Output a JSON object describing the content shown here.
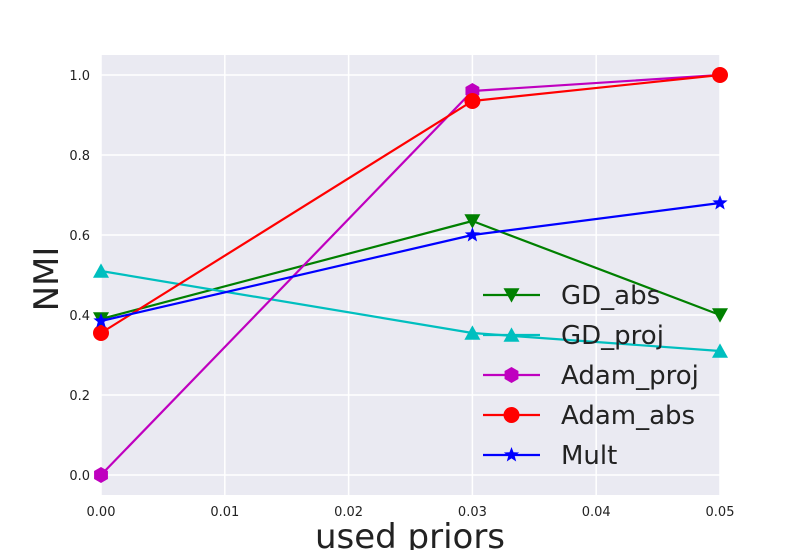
{
  "chart_data": {
    "type": "line",
    "title": "",
    "xlabel": "used priors",
    "ylabel": "NMI",
    "xlim": [
      0.0,
      0.05
    ],
    "ylim": [
      -0.05,
      1.05
    ],
    "xticks": [
      0.0,
      0.01,
      0.02,
      0.03,
      0.04,
      0.05
    ],
    "xtick_labels": [
      "0.00",
      "0.01",
      "0.02",
      "0.03",
      "0.04",
      "0.05"
    ],
    "yticks": [
      0.0,
      0.2,
      0.4,
      0.6,
      0.8,
      1.0
    ],
    "ytick_labels": [
      "0.0",
      "0.2",
      "0.4",
      "0.6",
      "0.8",
      "1.0"
    ],
    "grid": true,
    "legend_position": "lower-right",
    "x": [
      0.0,
      0.03,
      0.05
    ],
    "series": [
      {
        "name": "GD_abs",
        "values": [
          0.39,
          0.635,
          0.4
        ],
        "color": "#008000",
        "marker": "triangle-down"
      },
      {
        "name": "GD_proj",
        "values": [
          0.51,
          0.355,
          0.31
        ],
        "color": "#00bfbf",
        "marker": "triangle-up"
      },
      {
        "name": "Adam_proj",
        "values": [
          0.0,
          0.96,
          1.0
        ],
        "color": "#bf00bf",
        "marker": "hexagon"
      },
      {
        "name": "Adam_abs",
        "values": [
          0.355,
          0.935,
          1.0
        ],
        "color": "#ff0000",
        "marker": "circle"
      },
      {
        "name": "Mult",
        "values": [
          0.385,
          0.6,
          0.68
        ],
        "color": "#0000ff",
        "marker": "star"
      }
    ]
  }
}
